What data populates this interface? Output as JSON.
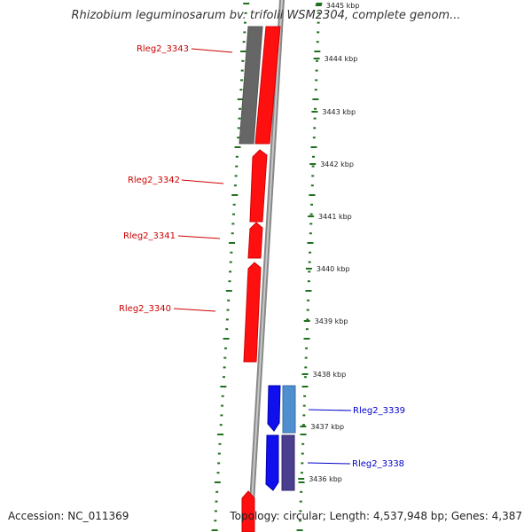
{
  "title": "Rhizobium leguminosarum bv. trifolii WSM2304, complete genom...",
  "footer": {
    "accession": "Accession: NC_011369",
    "topology": "Topology: circular; Length: 4,537,948 bp; Genes: 4,387"
  },
  "colors": {
    "forward_gene": "#ff1010",
    "reverse_gene": "#1010ee",
    "gray_feature": "#666666",
    "light_blue_feature": "#4f8fcf",
    "purple_feature": "#4a3f8e",
    "tick_green": "#207020",
    "label_red": "#cc0000",
    "label_blue": "#0000cc"
  },
  "scale": {
    "labels": [
      "3445 kbp",
      "3444 kbp",
      "3443 kbp",
      "3442 kbp",
      "3441 kbp",
      "3440 kbp",
      "3439 kbp",
      "3438 kbp",
      "3437 kbp",
      "3436 kbp"
    ]
  },
  "genes": [
    {
      "label": "Rleg2_3343",
      "strand": "forward"
    },
    {
      "label": "Rleg2_3342",
      "strand": "forward"
    },
    {
      "label": "Rleg2_3341",
      "strand": "forward"
    },
    {
      "label": "Rleg2_3340",
      "strand": "forward"
    },
    {
      "label": "Rleg2_3339",
      "strand": "reverse"
    },
    {
      "label": "Rleg2_3338",
      "strand": "reverse"
    }
  ]
}
